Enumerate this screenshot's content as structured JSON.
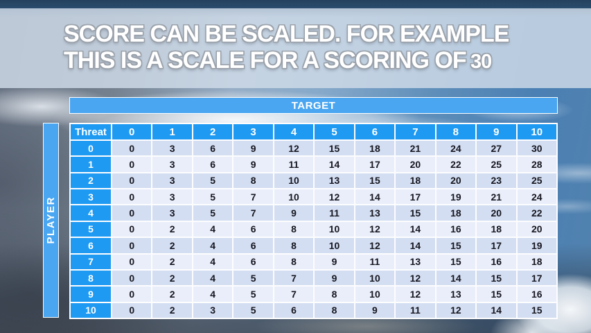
{
  "slide": {
    "title_line1": "SCORE CAN BE SCALED. FOR EXAMPLE",
    "title_line2_text": "THIS IS A SCALE FOR A SCORING OF",
    "title_line2_number": "30"
  },
  "matrix": {
    "target_label": "TARGET",
    "player_label": "PLAYER",
    "corner_label": "Threat",
    "target_columns": [
      "0",
      "1",
      "2",
      "3",
      "4",
      "5",
      "6",
      "7",
      "8",
      "9",
      "10"
    ],
    "player_rows": [
      "0",
      "1",
      "2",
      "3",
      "4",
      "5",
      "6",
      "7",
      "8",
      "9",
      "10"
    ],
    "values": [
      [
        0,
        3,
        6,
        9,
        12,
        15,
        18,
        21,
        24,
        27,
        30
      ],
      [
        0,
        3,
        6,
        9,
        11,
        14,
        17,
        20,
        22,
        25,
        28
      ],
      [
        0,
        3,
        5,
        8,
        10,
        13,
        15,
        18,
        20,
        23,
        25
      ],
      [
        0,
        3,
        5,
        7,
        10,
        12,
        14,
        17,
        19,
        21,
        24
      ],
      [
        0,
        3,
        5,
        7,
        9,
        11,
        13,
        15,
        18,
        20,
        22
      ],
      [
        0,
        2,
        4,
        6,
        8,
        10,
        12,
        14,
        16,
        18,
        20
      ],
      [
        0,
        2,
        4,
        6,
        8,
        10,
        12,
        14,
        15,
        17,
        19
      ],
      [
        0,
        2,
        4,
        6,
        8,
        9,
        11,
        13,
        15,
        16,
        18
      ],
      [
        0,
        2,
        4,
        5,
        7,
        9,
        10,
        12,
        14,
        15,
        17
      ],
      [
        0,
        2,
        4,
        5,
        7,
        8,
        10,
        12,
        13,
        15,
        16
      ],
      [
        0,
        2,
        3,
        5,
        6,
        8,
        9,
        11,
        12,
        14,
        15
      ]
    ]
  },
  "colors": {
    "header_blue": "#1e9af2",
    "bar_blue": "#4aa6f0",
    "row_dark": "#d3def2",
    "row_light": "#e9eefa",
    "cell_text": "#16161f",
    "banner_overlay": "rgba(206,218,231,0.84)"
  }
}
